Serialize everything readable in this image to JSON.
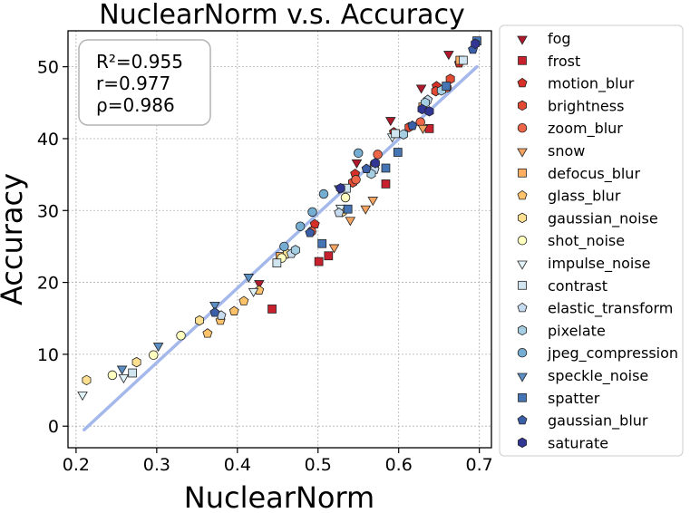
{
  "chart_data": {
    "type": "scatter",
    "title": "NuclearNorm  v.s.  Accuracy",
    "xlabel": "NuclearNorm",
    "ylabel": "Accuracy",
    "xlim": [
      0.19,
      0.715
    ],
    "ylim": [
      -3,
      55
    ],
    "xticks": [
      0.2,
      0.3,
      0.4,
      0.5,
      0.6,
      0.7
    ],
    "xtick_labels": [
      "0.2",
      "0.3",
      "0.4",
      "0.5",
      "0.6",
      "0.7"
    ],
    "yticks": [
      0,
      10,
      20,
      30,
      40,
      50
    ],
    "ytick_labels": [
      "0",
      "10",
      "20",
      "30",
      "40",
      "50"
    ],
    "grid": true,
    "stats": [
      "R²=0.955",
      "r=0.977",
      "ρ=0.986"
    ],
    "fit_line": {
      "x": [
        0.21,
        0.697
      ],
      "y": [
        -0.5,
        50
      ],
      "color": "#a4b8ec"
    },
    "legend_position": "outside-right",
    "series": [
      {
        "name": "fog",
        "marker": "triangle-down",
        "color": "#b2182b",
        "points": [
          [
            0.427,
            20.0
          ],
          [
            0.548,
            36.8
          ],
          [
            0.59,
            42.7
          ],
          [
            0.628,
            47.2
          ],
          [
            0.662,
            51.9
          ]
        ]
      },
      {
        "name": "frost",
        "marker": "square",
        "color": "#c8202c",
        "points": [
          [
            0.443,
            16.3
          ],
          [
            0.501,
            22.9
          ],
          [
            0.513,
            23.7
          ],
          [
            0.584,
            33.7
          ],
          [
            0.638,
            41.4
          ]
        ]
      },
      {
        "name": "motion_blur",
        "marker": "pentagon",
        "color": "#d73027",
        "points": [
          [
            0.496,
            28.1
          ],
          [
            0.546,
            35.1
          ],
          [
            0.594,
            40.9
          ],
          [
            0.647,
            47.3
          ],
          [
            0.675,
            50.5
          ]
        ]
      },
      {
        "name": "brightness",
        "marker": "hexagon",
        "color": "#e34a33",
        "points": [
          [
            0.543,
            33.9
          ],
          [
            0.613,
            41.6
          ],
          [
            0.646,
            46.6
          ],
          [
            0.664,
            48.3
          ]
        ]
      },
      {
        "name": "zoom_blur",
        "marker": "circle",
        "color": "#ef6548",
        "points": [
          [
            0.492,
            27.1
          ],
          [
            0.547,
            34.3
          ],
          [
            0.574,
            37.8
          ],
          [
            0.627,
            42.3
          ],
          [
            0.66,
            47.1
          ]
        ]
      },
      {
        "name": "snow",
        "marker": "triangle-down",
        "color": "#f4a460",
        "points": [
          [
            0.52,
            25.0
          ],
          [
            0.54,
            28.8
          ],
          [
            0.559,
            30.4
          ],
          [
            0.568,
            31.6
          ],
          [
            0.63,
            41.6
          ]
        ]
      },
      {
        "name": "defocus_blur",
        "marker": "square",
        "color": "#fdae61",
        "points": [
          [
            0.453,
            23.6
          ],
          [
            0.57,
            36.2
          ],
          [
            0.63,
            44.4
          ],
          [
            0.676,
            50.9
          ]
        ]
      },
      {
        "name": "glass_blur",
        "marker": "pentagon",
        "color": "#fdc26a",
        "points": [
          [
            0.363,
            12.9
          ],
          [
            0.379,
            14.7
          ],
          [
            0.396,
            16.0
          ],
          [
            0.408,
            17.4
          ],
          [
            0.427,
            18.9
          ]
        ]
      },
      {
        "name": "gaussian_noise",
        "marker": "hexagon",
        "color": "#fee090",
        "points": [
          [
            0.213,
            6.4
          ],
          [
            0.275,
            8.9
          ],
          [
            0.353,
            14.7
          ],
          [
            0.462,
            24.0
          ],
          [
            0.53,
            29.8
          ]
        ]
      },
      {
        "name": "shot_noise",
        "marker": "circle",
        "color": "#ffffbf",
        "points": [
          [
            0.245,
            7.1
          ],
          [
            0.296,
            9.9
          ],
          [
            0.33,
            12.6
          ],
          [
            0.455,
            23.4
          ],
          [
            0.534,
            31.8
          ]
        ]
      },
      {
        "name": "impulse_noise",
        "marker": "triangle-down",
        "color": "#e0f3f8",
        "points": [
          [
            0.208,
            4.5
          ],
          [
            0.259,
            6.9
          ],
          [
            0.42,
            18.9
          ],
          [
            0.528,
            30.5
          ],
          [
            0.592,
            40.4
          ]
        ]
      },
      {
        "name": "contrast",
        "marker": "square",
        "color": "#d1e5f0",
        "points": [
          [
            0.27,
            7.4
          ],
          [
            0.449,
            22.7
          ],
          [
            0.535,
            33.1
          ],
          [
            0.596,
            40.7
          ],
          [
            0.68,
            50.9
          ]
        ]
      },
      {
        "name": "elastic_transform",
        "marker": "pentagon",
        "color": "#c6dbef",
        "points": [
          [
            0.38,
            15.4
          ],
          [
            0.467,
            24.0
          ],
          [
            0.526,
            29.7
          ],
          [
            0.57,
            35.7
          ],
          [
            0.636,
            45.4
          ]
        ]
      },
      {
        "name": "pixelate",
        "marker": "hexagon",
        "color": "#a6cee3",
        "points": [
          [
            0.472,
            24.5
          ],
          [
            0.566,
            35.1
          ],
          [
            0.606,
            40.6
          ],
          [
            0.633,
            45.0
          ],
          [
            0.653,
            46.7
          ]
        ]
      },
      {
        "name": "jpeg_compression",
        "marker": "circle",
        "color": "#74add1",
        "points": [
          [
            0.458,
            25.0
          ],
          [
            0.478,
            27.8
          ],
          [
            0.493,
            29.8
          ],
          [
            0.507,
            32.3
          ],
          [
            0.55,
            38.0
          ]
        ]
      },
      {
        "name": "speckle_noise",
        "marker": "triangle-down",
        "color": "#5b8ec2",
        "points": [
          [
            0.257,
            8.1
          ],
          [
            0.302,
            11.3
          ],
          [
            0.372,
            17.0
          ],
          [
            0.414,
            20.9
          ],
          [
            0.526,
            33.2
          ]
        ]
      },
      {
        "name": "spatter",
        "marker": "square",
        "color": "#4575b4",
        "points": [
          [
            0.505,
            25.4
          ],
          [
            0.537,
            30.2
          ],
          [
            0.584,
            35.9
          ],
          [
            0.599,
            38.1
          ],
          [
            0.659,
            47.3
          ],
          [
            0.697,
            53.6
          ]
        ]
      },
      {
        "name": "gaussian_blur",
        "marker": "pentagon",
        "color": "#3a5ea8",
        "points": [
          [
            0.372,
            15.8
          ],
          [
            0.49,
            26.9
          ],
          [
            0.56,
            35.8
          ],
          [
            0.617,
            41.8
          ],
          [
            0.692,
            52.4
          ]
        ]
      },
      {
        "name": "saturate",
        "marker": "hexagon",
        "color": "#313695",
        "points": [
          [
            0.528,
            33.1
          ],
          [
            0.571,
            36.6
          ],
          [
            0.629,
            44.1
          ],
          [
            0.638,
            43.8
          ],
          [
            0.695,
            53.2
          ]
        ]
      }
    ]
  }
}
